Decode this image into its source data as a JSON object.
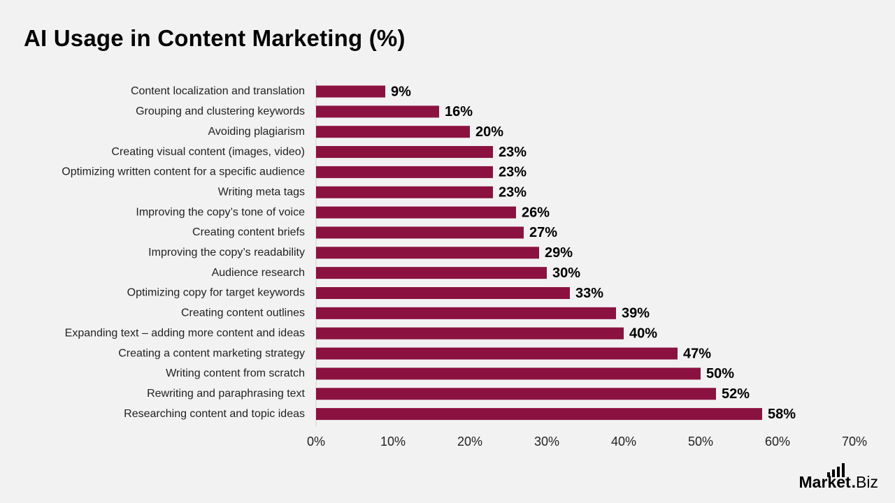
{
  "title": "AI Usage in Content Marketing (%)",
  "brand": {
    "market": "Market",
    "dot": ".",
    "biz": "Biz",
    "icon": "bar-chart-logo-icon"
  },
  "colors": {
    "bar": "#8b1240",
    "background": "#f2f2f2",
    "axis": "#d0d0d0"
  },
  "chart_data": {
    "type": "bar",
    "orientation": "horizontal",
    "title": "AI Usage in Content Marketing (%)",
    "categories": [
      "Content localization and translation",
      "Grouping and clustering keywords",
      "Avoiding plagiarism",
      "Creating visual content (images, video)",
      "Optimizing written content for a specific audience",
      "Writing meta tags",
      "Improving the copy’s tone of voice",
      "Creating content briefs",
      "Improving the copy’s readability",
      "Audience research",
      "Optimizing copy for target keywords",
      "Creating content outlines",
      "Expanding text – adding more content and ideas",
      "Creating a content marketing strategy",
      "Writing content from scratch",
      "Rewriting and paraphrasing text",
      "Researching content and topic ideas"
    ],
    "values": [
      9,
      16,
      20,
      23,
      23,
      23,
      26,
      27,
      29,
      30,
      33,
      39,
      40,
      47,
      50,
      52,
      58
    ],
    "data_labels": [
      "9%",
      "16%",
      "20%",
      "23%",
      "23%",
      "23%",
      "26%",
      "27%",
      "29%",
      "30%",
      "33%",
      "39%",
      "40%",
      "47%",
      "50%",
      "52%",
      "58%"
    ],
    "xlim": [
      0,
      70
    ],
    "x_ticks": [
      "0%",
      "10%",
      "20%",
      "30%",
      "40%",
      "50%",
      "60%",
      "70%"
    ],
    "grid": false,
    "legend": "none"
  }
}
